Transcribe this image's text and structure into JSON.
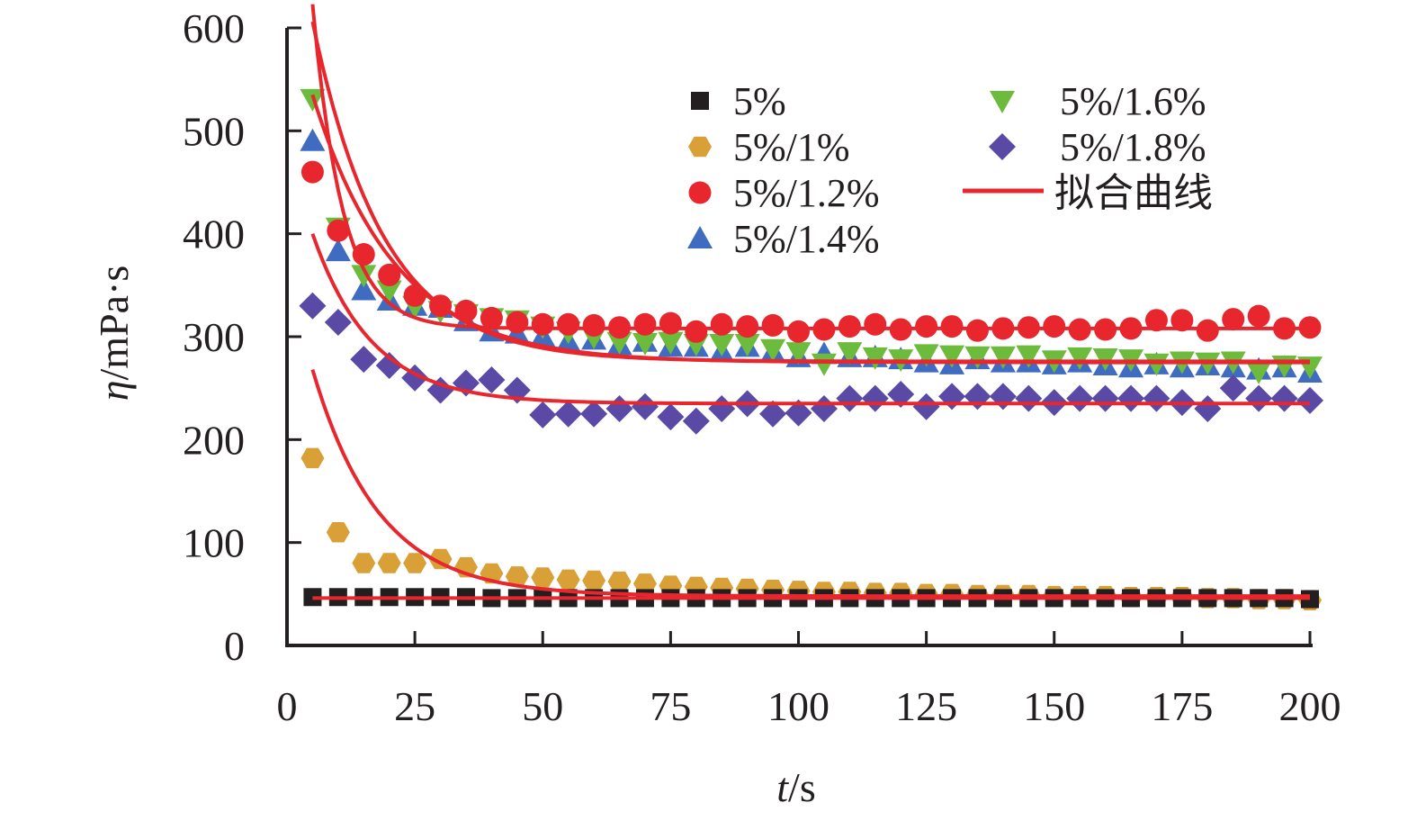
{
  "chart_data": {
    "type": "scatter",
    "xlabel_var": "t",
    "xlabel_unit": "/s",
    "ylabel_var": "η",
    "ylabel_unit": "/mPa·s",
    "xlim": [
      0,
      200
    ],
    "ylim": [
      0,
      600
    ],
    "xticks": [
      0,
      25,
      50,
      75,
      100,
      125,
      150,
      175,
      200
    ],
    "yticks": [
      0,
      100,
      200,
      300,
      400,
      500,
      600
    ],
    "grid": false,
    "legend_position": "top-right",
    "fit_label": "拟合曲线",
    "fit_color": "#e8262d",
    "x": [
      5,
      10,
      15,
      20,
      25,
      30,
      35,
      40,
      45,
      50,
      55,
      60,
      65,
      70,
      75,
      80,
      85,
      90,
      95,
      100,
      105,
      110,
      115,
      120,
      125,
      130,
      135,
      140,
      145,
      150,
      155,
      160,
      165,
      170,
      175,
      180,
      185,
      190,
      195,
      200
    ],
    "series": [
      {
        "name": "5%",
        "marker": "square",
        "color": "#231f20",
        "values": [
          47,
          47,
          47,
          47,
          47,
          47,
          47,
          46,
          46,
          46,
          46,
          46,
          46,
          46,
          46,
          46,
          46,
          46,
          46,
          46,
          46,
          46,
          46,
          46,
          46,
          46,
          46,
          46,
          46,
          46,
          46,
          46,
          46,
          46,
          46,
          46,
          46,
          46,
          46,
          45
        ],
        "fit": {
          "a": 0,
          "c": 46,
          "k": 0.1
        }
      },
      {
        "name": "5%/1%",
        "marker": "hexagon",
        "color": "#d8a036",
        "values": [
          182,
          110,
          80,
          80,
          80,
          84,
          76,
          70,
          67,
          66,
          64,
          63,
          62,
          60,
          58,
          57,
          56,
          55,
          54,
          53,
          52,
          52,
          51,
          51,
          50,
          50,
          49,
          49,
          49,
          48,
          48,
          48,
          47,
          47,
          47,
          46,
          46,
          45,
          45,
          44
        ],
        "fit": {
          "a": 220,
          "c": 48,
          "k": 0.077
        }
      },
      {
        "name": "5%/1.2%",
        "marker": "circle",
        "color": "#e8262d",
        "values": [
          460,
          403,
          380,
          360,
          340,
          330,
          325,
          318,
          314,
          312,
          312,
          311,
          309,
          312,
          313,
          305,
          312,
          310,
          311,
          305,
          307,
          310,
          312,
          307,
          310,
          310,
          306,
          308,
          309,
          310,
          307,
          307,
          308,
          316,
          316,
          306,
          317,
          320,
          308,
          309
        ],
        "fit": {
          "a": 315,
          "c": 308,
          "k": 0.17
        }
      },
      {
        "name": "5%/1.4%",
        "marker": "triangle-up",
        "color": "#3f6cc1",
        "values": [
          490,
          383,
          345,
          335,
          330,
          328,
          315,
          305,
          303,
          300,
          295,
          297,
          292,
          295,
          290,
          290,
          285,
          290,
          285,
          280,
          283,
          280,
          280,
          278,
          275,
          273,
          278,
          275,
          275,
          273,
          275,
          272,
          270,
          273,
          270,
          272,
          270,
          268,
          270,
          265
        ],
        "fit": {
          "a": 260,
          "c": 275,
          "k": 0.062
        }
      },
      {
        "name": "5%/1.6%",
        "marker": "triangle-down",
        "color": "#6cbb3c",
        "values": [
          531,
          406,
          360,
          345,
          330,
          325,
          322,
          318,
          316,
          310,
          305,
          300,
          295,
          294,
          295,
          293,
          293,
          293,
          288,
          285,
          274,
          285,
          280,
          278,
          283,
          282,
          281,
          281,
          282,
          277,
          280,
          279,
          278,
          274,
          276,
          275,
          276,
          266,
          272,
          271
        ],
        "fit": {
          "a": 330,
          "c": 276,
          "k": 0.072
        }
      },
      {
        "name": "5%/1.8%",
        "marker": "diamond",
        "color": "#5a4aa6",
        "values": [
          330,
          314,
          278,
          272,
          260,
          248,
          255,
          258,
          248,
          224,
          225,
          225,
          230,
          232,
          222,
          218,
          230,
          235,
          225,
          226,
          230,
          240,
          240,
          244,
          232,
          242,
          242,
          242,
          240,
          236,
          240,
          240,
          240,
          240,
          236,
          230,
          250,
          240,
          240,
          238
        ],
        "fit": {
          "a": 165,
          "c": 235,
          "k": 0.087
        }
      }
    ]
  }
}
